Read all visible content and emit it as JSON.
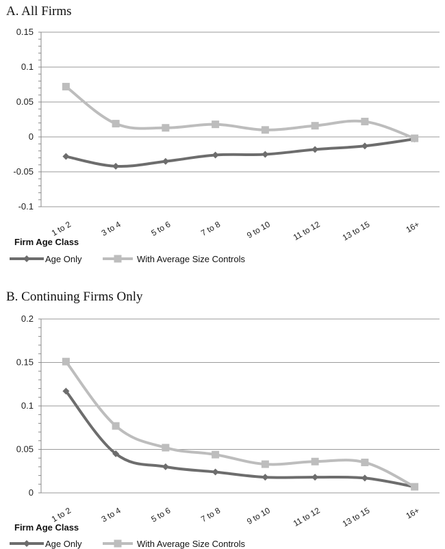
{
  "chart_data": [
    {
      "type": "line",
      "title": "A. All Firms",
      "xlabel": "Firm Age Class",
      "ylabel": "",
      "categories": [
        "1 to 2",
        "3 to 4",
        "5 to 6",
        "7 to 8",
        "9 to 10",
        "11 to 12",
        "13 to 15",
        "16+"
      ],
      "yticks": [
        -0.1,
        -0.05,
        0,
        0.05,
        0.1,
        0.15
      ],
      "ytick_labels": [
        "-0.1",
        "-0.05",
        "0",
        "0.05",
        "0.1",
        "0.15"
      ],
      "ylim": [
        -0.1,
        0.15
      ],
      "grid": true,
      "legend_position": "bottom-left",
      "series": [
        {
          "name": "Age Only",
          "color": "#6d6d6d",
          "marker": "diamond",
          "values": [
            -0.028,
            -0.042,
            -0.035,
            -0.026,
            -0.025,
            -0.018,
            -0.013,
            -0.003
          ]
        },
        {
          "name": "With Average Size Controls",
          "color": "#bdbdbd",
          "marker": "square",
          "values": [
            0.072,
            0.019,
            0.013,
            0.018,
            0.01,
            0.016,
            0.022,
            -0.002
          ]
        }
      ]
    },
    {
      "type": "line",
      "title": "B. Continuing Firms Only",
      "xlabel": "Firm Age Class",
      "ylabel": "",
      "categories": [
        "1 to 2",
        "3 to 4",
        "5 to 6",
        "7 to 8",
        "9 to 10",
        "11 to 12",
        "13 to 15",
        "16+"
      ],
      "yticks": [
        0,
        0.05,
        0.1,
        0.15,
        0.2
      ],
      "ytick_labels": [
        "0",
        "0.05",
        "0.1",
        "0.15",
        "0.2"
      ],
      "ylim": [
        0,
        0.2
      ],
      "grid": true,
      "legend_position": "bottom-left",
      "series": [
        {
          "name": "Age Only",
          "color": "#6d6d6d",
          "marker": "diamond",
          "values": [
            0.117,
            0.045,
            0.03,
            0.024,
            0.018,
            0.018,
            0.017,
            0.007
          ]
        },
        {
          "name": "With Average Size Controls",
          "color": "#bdbdbd",
          "marker": "square",
          "values": [
            0.151,
            0.077,
            0.052,
            0.044,
            0.033,
            0.036,
            0.035,
            0.007
          ]
        }
      ]
    }
  ]
}
